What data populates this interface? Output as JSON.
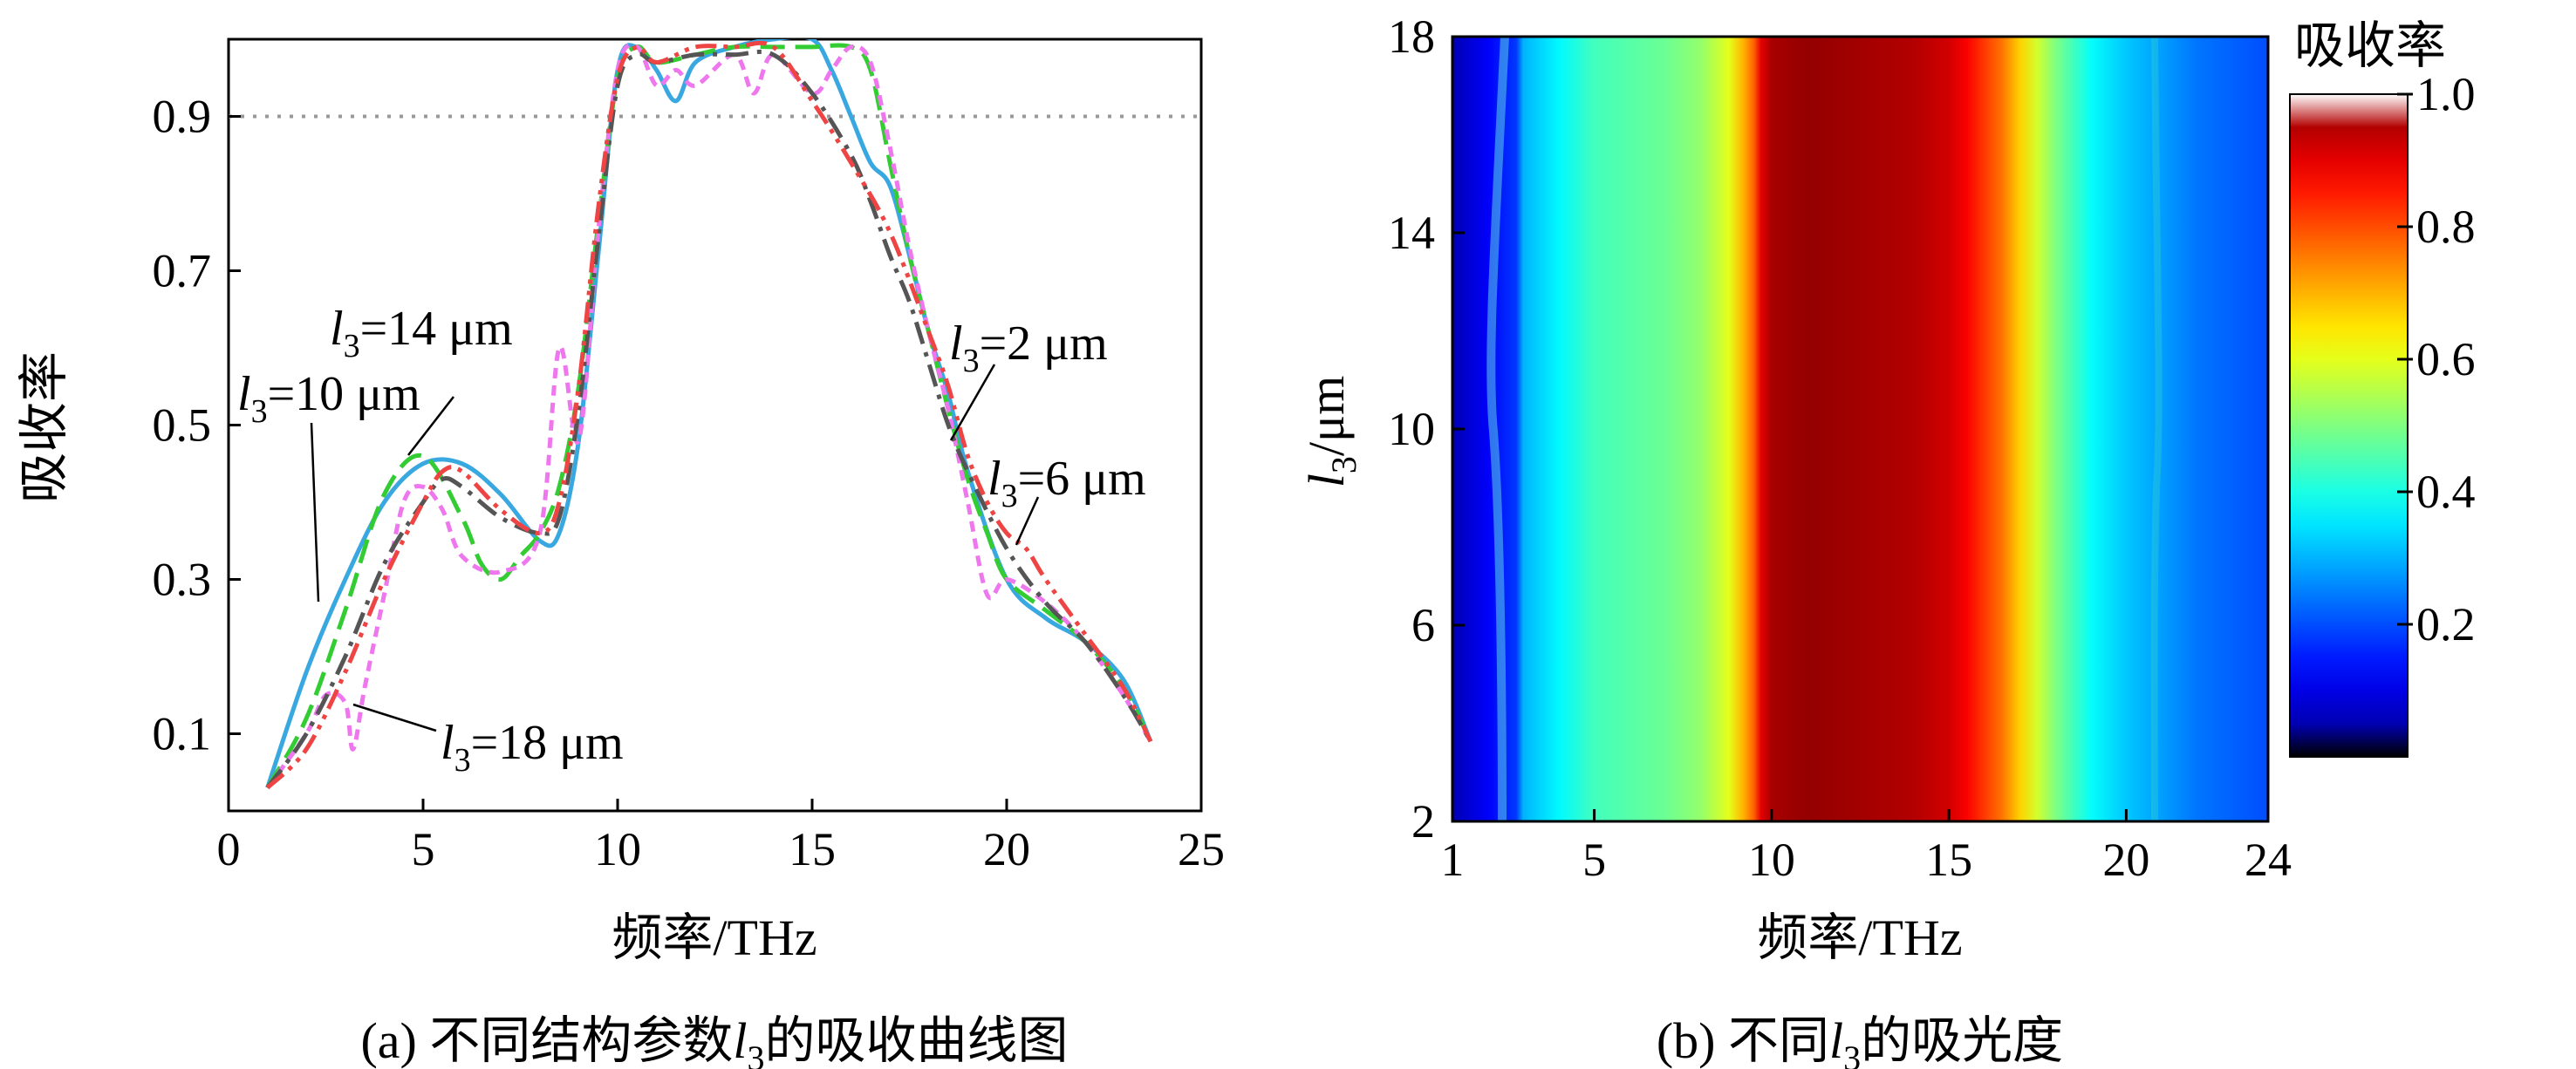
{
  "figure": {
    "panel_a": {
      "caption_prefix": "(a) 不同结构参数",
      "caption_var": "l",
      "caption_sub": "3",
      "caption_suffix": "的吸收曲线图"
    },
    "panel_b": {
      "caption_prefix": "(b) 不同",
      "caption_var": "l",
      "caption_sub": "3",
      "caption_suffix": "的吸光度"
    }
  },
  "chart_data": [
    {
      "type": "line",
      "xlabel": "频率/THz",
      "ylabel": "吸收率",
      "xlim": [
        0,
        25
      ],
      "ylim": [
        0,
        1.0
      ],
      "x_ticks": [
        "0",
        "5",
        "10",
        "15",
        "20",
        "25"
      ],
      "y_ticks": [
        "0.1",
        "0.3",
        "0.5",
        "0.7",
        "0.9"
      ],
      "reference_line": {
        "y": 0.9,
        "style": "dotted",
        "color": "#999999"
      },
      "annotations": [
        {
          "var": "l",
          "sub": "3",
          "value": "=14 μm"
        },
        {
          "var": "l",
          "sub": "3",
          "value": "=10 μm"
        },
        {
          "var": "l",
          "sub": "3",
          "value": "=18 μm"
        },
        {
          "var": "l",
          "sub": "3",
          "value": "=2 μm"
        },
        {
          "var": "l",
          "sub": "3",
          "value": "=6 μm"
        }
      ],
      "series": [
        {
          "name": "l3=10 μm",
          "color": "#3aa8e0",
          "dash": "solid",
          "x": [
            1,
            2,
            3,
            4,
            5,
            6,
            7,
            8,
            8.5,
            9,
            9.5,
            10,
            10.5,
            11,
            11.5,
            12,
            13,
            14,
            15,
            15.5,
            16,
            16.5,
            17,
            17.5,
            18,
            18.5,
            19,
            20,
            21,
            22,
            23,
            23.7
          ],
          "y": [
            0.03,
            0.18,
            0.3,
            0.4,
            0.45,
            0.45,
            0.41,
            0.35,
            0.36,
            0.48,
            0.72,
            0.96,
            0.99,
            0.96,
            0.92,
            0.97,
            0.99,
            1.0,
            1.0,
            0.96,
            0.9,
            0.84,
            0.81,
            0.72,
            0.62,
            0.54,
            0.44,
            0.3,
            0.25,
            0.22,
            0.17,
            0.09
          ]
        },
        {
          "name": "l3=14 μm",
          "color": "#33cc33",
          "dash": "longdash",
          "x": [
            1,
            2,
            3,
            4,
            5,
            6,
            6.5,
            7,
            7.5,
            8,
            8.5,
            9,
            9.5,
            10,
            10.5,
            11,
            12,
            13,
            14,
            15,
            16,
            16.5,
            17,
            17.5,
            18,
            18.5,
            19,
            19.5,
            20,
            21,
            22,
            23,
            23.7
          ],
          "y": [
            0.03,
            0.12,
            0.26,
            0.41,
            0.46,
            0.38,
            0.32,
            0.3,
            0.33,
            0.36,
            0.42,
            0.55,
            0.76,
            0.95,
            0.99,
            0.97,
            0.98,
            0.99,
            0.99,
            0.99,
            0.99,
            0.96,
            0.84,
            0.72,
            0.62,
            0.52,
            0.43,
            0.36,
            0.3,
            0.26,
            0.22,
            0.16,
            0.09
          ]
        },
        {
          "name": "l3=18 μm",
          "color": "#ee77ee",
          "dash": "shortdash",
          "x": [
            1,
            2,
            2.5,
            3,
            3.2,
            3.5,
            4,
            4.5,
            5,
            5.5,
            6,
            7,
            8,
            8.5,
            9,
            9.5,
            10,
            10.5,
            11,
            11.5,
            12,
            13,
            13.5,
            14,
            15,
            15.5,
            16,
            16.5,
            17,
            17.5,
            18,
            18.5,
            19,
            19.5,
            20,
            21,
            22,
            23,
            23.7
          ],
          "y": [
            0.03,
            0.1,
            0.15,
            0.14,
            0.08,
            0.16,
            0.28,
            0.4,
            0.42,
            0.39,
            0.33,
            0.31,
            0.36,
            0.6,
            0.48,
            0.75,
            0.96,
            0.99,
            0.94,
            0.96,
            0.94,
            0.98,
            0.93,
            0.98,
            0.93,
            0.96,
            0.99,
            0.97,
            0.86,
            0.73,
            0.62,
            0.52,
            0.4,
            0.28,
            0.3,
            0.27,
            0.22,
            0.15,
            0.09
          ]
        },
        {
          "name": "l3=2 μm",
          "color": "#555555",
          "dash": "dashdot",
          "x": [
            1,
            2,
            3,
            4,
            5,
            5.5,
            6,
            7,
            8,
            8.5,
            9,
            9.5,
            10,
            10.5,
            11,
            12,
            13,
            14,
            15,
            16,
            16.5,
            17,
            17.5,
            18,
            18.5,
            19,
            20,
            21,
            22,
            23,
            23.7
          ],
          "y": [
            0.03,
            0.1,
            0.2,
            0.32,
            0.4,
            0.43,
            0.42,
            0.38,
            0.36,
            0.38,
            0.52,
            0.74,
            0.94,
            0.98,
            0.97,
            0.98,
            0.98,
            0.98,
            0.93,
            0.85,
            0.79,
            0.72,
            0.66,
            0.58,
            0.5,
            0.44,
            0.34,
            0.27,
            0.22,
            0.15,
            0.09
          ]
        },
        {
          "name": "l3=6 μm",
          "color": "#ee4444",
          "dash": "dashdotdot",
          "x": [
            1,
            2,
            3,
            4,
            5,
            5.5,
            6,
            7,
            8,
            8.5,
            9,
            9.5,
            10,
            10.5,
            11,
            12,
            13,
            14,
            15,
            16,
            17,
            18,
            18.5,
            19,
            19.5,
            20,
            20.5,
            21,
            22,
            23,
            23.7
          ],
          "y": [
            0.03,
            0.08,
            0.18,
            0.3,
            0.4,
            0.44,
            0.44,
            0.39,
            0.36,
            0.4,
            0.55,
            0.78,
            0.95,
            0.99,
            0.97,
            0.99,
            0.99,
            0.99,
            0.92,
            0.84,
            0.75,
            0.62,
            0.55,
            0.46,
            0.4,
            0.36,
            0.34,
            0.3,
            0.23,
            0.16,
            0.09
          ]
        }
      ]
    },
    {
      "type": "heatmap",
      "xlabel": "频率/THz",
      "ylabel_var": "l",
      "ylabel_sub": "3",
      "ylabel_unit": "/μm",
      "xlim": [
        1,
        24
      ],
      "ylim": [
        2,
        18
      ],
      "x_ticks": [
        "1",
        "5",
        "10",
        "15",
        "20",
        "24"
      ],
      "y_ticks": [
        "2",
        "6",
        "10",
        "14",
        "18"
      ],
      "colorbar": {
        "title": "吸收率",
        "range": [
          0,
          1.0
        ],
        "ticks": [
          "0.2",
          "0.4",
          "0.6",
          "0.8",
          "1.0"
        ],
        "colormap": "jet"
      },
      "profile_x": [
        1,
        2,
        2.8,
        3,
        4,
        5,
        6,
        7,
        8,
        8.8,
        9.2,
        9.5,
        9.7,
        10,
        11,
        12,
        13,
        14,
        15,
        15.5,
        16,
        16.5,
        17,
        17.5,
        18,
        18.5,
        19,
        20,
        21,
        22,
        23,
        24
      ],
      "profile_absorption": [
        0.05,
        0.12,
        0.18,
        0.3,
        0.37,
        0.44,
        0.46,
        0.48,
        0.52,
        0.6,
        0.7,
        0.78,
        0.9,
        0.96,
        0.98,
        0.97,
        0.96,
        0.95,
        0.92,
        0.88,
        0.82,
        0.76,
        0.67,
        0.58,
        0.5,
        0.44,
        0.38,
        0.32,
        0.28,
        0.24,
        0.22,
        0.2
      ],
      "variation_note_free": true
    }
  ]
}
